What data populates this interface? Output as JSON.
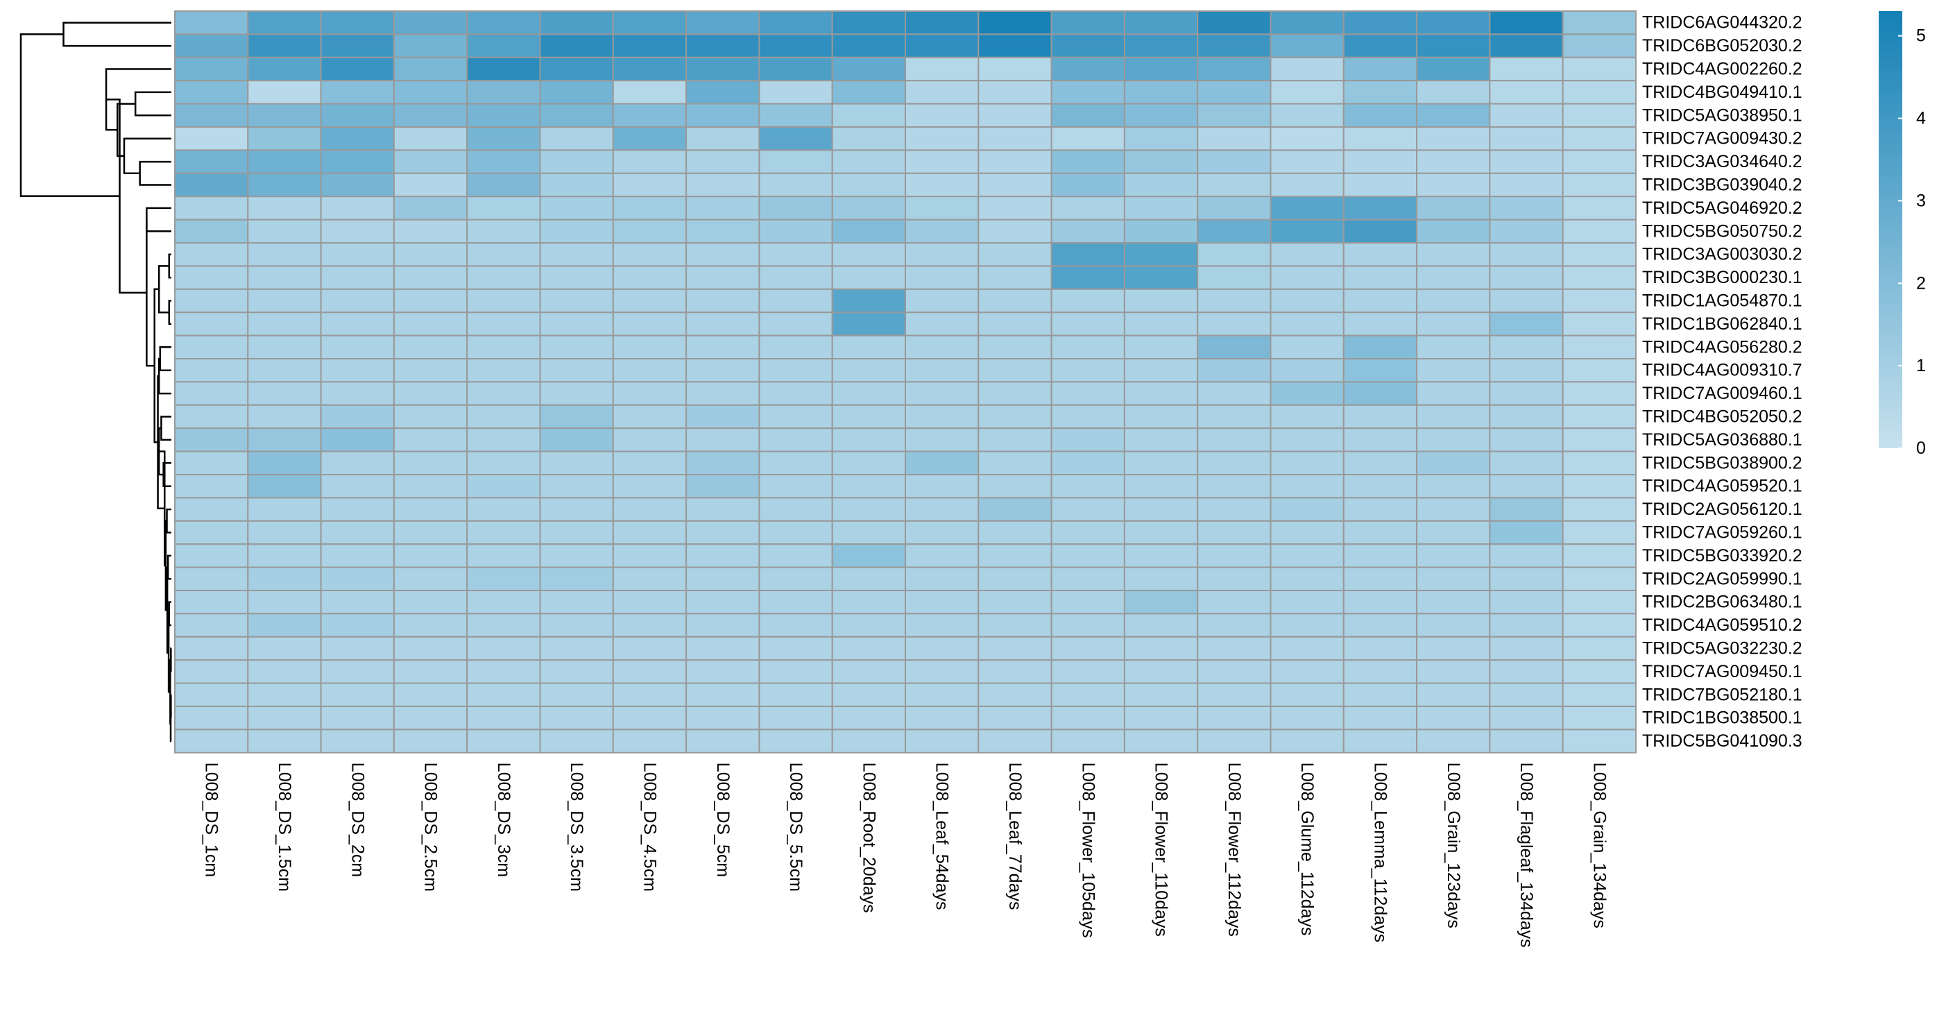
{
  "chart_data": {
    "type": "heatmap",
    "title": "",
    "xlabel": "",
    "ylabel": "",
    "columns": [
      "L008_DS_1cm",
      "L008_DS_1.5cm",
      "L008_DS_2cm",
      "L008_DS_2.5cm",
      "L008_DS_3cm",
      "L008_DS_3.5cm",
      "L008_DS_4.5cm",
      "L008_DS_5cm",
      "L008_DS_5.5cm",
      "L008_Root_20days",
      "L008_Leaf_54days",
      "L008_Leaf_77days",
      "L008_Flower_105days",
      "L008_Flower_110days",
      "L008_Flower_112days",
      "L008_Glume_112days",
      "L008_Lemma_112days",
      "L008_Grain_123days",
      "L008_Flagleaf_134days",
      "L008_Grain_134days"
    ],
    "rows": [
      "TRIDC6AG044320.2",
      "TRIDC6BG052030.2",
      "TRIDC4AG002260.2",
      "TRIDC4BG049410.1",
      "TRIDC5AG038950.1",
      "TRIDC7AG009430.2",
      "TRIDC3AG034640.2",
      "TRIDC3BG039040.2",
      "TRIDC5AG046920.2",
      "TRIDC5BG050750.2",
      "TRIDC3AG003030.2",
      "TRIDC3BG000230.1",
      "TRIDC1AG054870.1",
      "TRIDC1BG062840.1",
      "TRIDC4AG056280.2",
      "TRIDC4AG009310.7",
      "TRIDC7AG009460.1",
      "TRIDC4BG052050.2",
      "TRIDC5AG036880.1",
      "TRIDC5BG038900.2",
      "TRIDC4AG059520.1",
      "TRIDC2AG056120.1",
      "TRIDC7AG059260.1",
      "TRIDC5BG033920.2",
      "TRIDC2AG059990.1",
      "TRIDC2BG063480.1",
      "TRIDC4AG059510.2",
      "TRIDC5AG032230.2",
      "TRIDC7AG009450.1",
      "TRIDC7BG052180.1",
      "TRIDC1BG038500.1",
      "TRIDC5BG041090.3"
    ],
    "values": [
      [
        2.0,
        3.5,
        3.5,
        3.0,
        3.2,
        3.6,
        3.5,
        3.2,
        3.7,
        4.4,
        4.6,
        5.2,
        3.6,
        3.6,
        4.8,
        3.6,
        3.9,
        3.9,
        5.1,
        1.5
      ],
      [
        3.0,
        4.2,
        4.1,
        2.5,
        3.5,
        4.6,
        4.5,
        4.5,
        4.5,
        4.5,
        4.5,
        5.0,
        4.1,
        4.0,
        4.1,
        2.7,
        4.2,
        4.3,
        4.6,
        1.5
      ],
      [
        2.5,
        3.3,
        4.2,
        2.3,
        4.6,
        4.0,
        3.8,
        3.6,
        3.6,
        3.0,
        0.5,
        0.5,
        3.0,
        3.2,
        2.9,
        0.6,
        2.0,
        3.4,
        0.5,
        0.5
      ],
      [
        2.0,
        0.4,
        1.9,
        2.0,
        2.2,
        2.5,
        0.5,
        2.8,
        0.6,
        2.0,
        0.6,
        0.6,
        1.8,
        1.9,
        1.8,
        0.5,
        1.5,
        0.8,
        0.5,
        0.5
      ],
      [
        2.2,
        2.2,
        2.5,
        2.2,
        2.4,
        2.3,
        2.0,
        2.0,
        1.6,
        0.9,
        0.6,
        0.6,
        2.3,
        2.0,
        1.5,
        0.8,
        2.0,
        2.1,
        0.6,
        0.5
      ],
      [
        0.4,
        1.6,
        2.8,
        0.7,
        2.4,
        0.8,
        2.6,
        0.8,
        3.2,
        0.8,
        0.6,
        0.6,
        0.5,
        1.1,
        0.6,
        0.4,
        0.5,
        0.6,
        0.6,
        0.5
      ],
      [
        2.5,
        2.6,
        2.6,
        1.2,
        2.0,
        1.0,
        0.8,
        0.8,
        0.9,
        0.8,
        0.6,
        0.6,
        1.8,
        1.4,
        1.2,
        0.6,
        0.6,
        0.6,
        0.6,
        0.5
      ],
      [
        3.0,
        2.6,
        2.4,
        0.6,
        2.2,
        1.0,
        0.7,
        0.7,
        0.8,
        0.8,
        0.6,
        0.6,
        1.8,
        1.0,
        0.8,
        0.7,
        0.6,
        0.6,
        0.6,
        0.5
      ],
      [
        0.8,
        0.7,
        0.7,
        1.4,
        0.9,
        1.0,
        1.1,
        1.0,
        1.4,
        1.3,
        0.9,
        0.6,
        0.8,
        1.0,
        1.4,
        3.3,
        3.3,
        1.4,
        1.2,
        0.5
      ],
      [
        1.5,
        0.8,
        0.7,
        0.7,
        0.8,
        1.0,
        1.1,
        1.1,
        1.2,
        2.0,
        1.2,
        0.7,
        1.3,
        1.6,
        2.8,
        3.4,
        3.8,
        1.6,
        1.2,
        0.5
      ],
      [
        0.8,
        0.8,
        0.8,
        0.8,
        0.8,
        0.8,
        0.8,
        0.8,
        0.8,
        0.8,
        0.8,
        0.8,
        3.5,
        3.4,
        0.9,
        0.8,
        0.8,
        0.8,
        0.8,
        0.5
      ],
      [
        0.8,
        0.8,
        0.8,
        0.8,
        0.8,
        0.8,
        0.8,
        0.8,
        0.8,
        0.8,
        0.8,
        0.8,
        3.5,
        3.4,
        0.9,
        0.8,
        0.8,
        0.8,
        0.8,
        0.5
      ],
      [
        0.8,
        0.8,
        0.8,
        0.8,
        0.8,
        0.8,
        0.8,
        0.8,
        0.8,
        3.3,
        0.8,
        0.8,
        0.8,
        0.8,
        0.8,
        0.8,
        0.8,
        0.8,
        0.8,
        0.5
      ],
      [
        0.8,
        0.8,
        0.8,
        0.8,
        0.8,
        0.8,
        0.8,
        0.8,
        0.8,
        3.3,
        0.8,
        0.8,
        0.8,
        0.8,
        0.8,
        0.8,
        0.8,
        0.8,
        1.7,
        0.5
      ],
      [
        0.8,
        0.8,
        0.8,
        0.8,
        0.8,
        0.8,
        0.8,
        0.8,
        0.8,
        0.8,
        0.8,
        0.8,
        0.8,
        0.8,
        2.2,
        0.8,
        2.0,
        0.8,
        0.8,
        0.5
      ],
      [
        0.8,
        0.8,
        0.8,
        0.8,
        0.8,
        0.8,
        0.8,
        0.8,
        0.8,
        0.8,
        0.8,
        0.8,
        0.8,
        0.8,
        1.2,
        1.0,
        1.7,
        0.8,
        0.8,
        0.5
      ],
      [
        0.8,
        0.8,
        0.8,
        0.8,
        0.8,
        0.8,
        0.8,
        0.8,
        0.8,
        0.8,
        0.8,
        0.8,
        0.8,
        0.8,
        0.8,
        1.6,
        1.9,
        0.8,
        0.8,
        0.5
      ],
      [
        0.8,
        0.8,
        1.2,
        0.8,
        0.8,
        1.5,
        0.8,
        1.2,
        0.8,
        0.8,
        0.8,
        0.8,
        0.8,
        0.8,
        0.8,
        0.8,
        0.8,
        0.8,
        0.8,
        0.5
      ],
      [
        1.4,
        1.5,
        1.8,
        0.8,
        0.8,
        1.6,
        0.8,
        0.8,
        0.8,
        0.8,
        0.8,
        0.8,
        1.0,
        0.8,
        0.8,
        0.8,
        0.8,
        0.8,
        0.8,
        0.5
      ],
      [
        0.8,
        1.8,
        0.8,
        0.8,
        0.8,
        0.8,
        0.8,
        1.3,
        0.8,
        0.8,
        1.6,
        0.8,
        1.0,
        0.8,
        0.8,
        0.8,
        0.8,
        1.2,
        0.8,
        0.5
      ],
      [
        0.8,
        1.9,
        0.8,
        0.8,
        1.0,
        0.8,
        0.8,
        1.4,
        0.8,
        0.8,
        0.8,
        0.8,
        0.8,
        0.8,
        0.8,
        0.8,
        0.8,
        0.8,
        0.8,
        0.5
      ],
      [
        0.8,
        0.8,
        0.8,
        0.8,
        0.8,
        0.8,
        0.8,
        0.8,
        0.8,
        0.8,
        0.8,
        1.4,
        0.8,
        0.8,
        0.8,
        1.0,
        0.8,
        0.8,
        1.5,
        0.5
      ],
      [
        0.8,
        0.8,
        0.8,
        0.8,
        0.8,
        0.8,
        0.8,
        0.8,
        0.8,
        0.8,
        0.8,
        0.8,
        0.8,
        0.8,
        0.8,
        0.8,
        0.8,
        0.8,
        1.6,
        0.5
      ],
      [
        0.8,
        0.8,
        0.8,
        0.8,
        0.8,
        0.8,
        0.8,
        0.8,
        0.8,
        1.7,
        0.8,
        0.8,
        0.8,
        0.8,
        0.8,
        0.8,
        0.8,
        0.8,
        0.8,
        0.5
      ],
      [
        0.8,
        1.0,
        1.0,
        0.8,
        1.1,
        1.1,
        0.8,
        0.8,
        0.8,
        0.8,
        0.8,
        0.8,
        0.8,
        0.8,
        0.8,
        0.8,
        0.8,
        0.8,
        0.8,
        0.5
      ],
      [
        0.8,
        0.8,
        0.8,
        0.8,
        0.8,
        0.8,
        0.8,
        0.8,
        0.8,
        0.8,
        0.8,
        0.8,
        0.8,
        1.5,
        0.8,
        0.8,
        0.8,
        0.8,
        0.8,
        0.5
      ],
      [
        0.8,
        1.2,
        1.0,
        0.8,
        0.8,
        0.8,
        0.8,
        0.8,
        0.8,
        0.8,
        0.8,
        0.8,
        0.8,
        0.8,
        0.8,
        0.8,
        0.8,
        0.8,
        0.8,
        0.5
      ],
      [
        0.7,
        0.7,
        0.7,
        0.7,
        0.7,
        0.7,
        0.7,
        0.7,
        0.7,
        0.7,
        0.7,
        0.7,
        0.7,
        0.7,
        0.7,
        0.7,
        0.7,
        0.7,
        0.7,
        0.5
      ],
      [
        0.7,
        0.7,
        0.7,
        0.7,
        0.7,
        0.7,
        0.7,
        0.7,
        0.7,
        0.7,
        0.7,
        0.7,
        0.7,
        0.7,
        0.7,
        0.7,
        0.7,
        0.7,
        0.7,
        0.5
      ],
      [
        0.7,
        0.7,
        0.7,
        0.7,
        0.7,
        0.7,
        0.7,
        0.7,
        0.7,
        0.7,
        0.7,
        0.7,
        0.7,
        0.7,
        0.7,
        0.7,
        0.7,
        0.7,
        0.7,
        0.5
      ],
      [
        0.7,
        0.7,
        0.7,
        0.7,
        0.7,
        0.7,
        0.7,
        0.7,
        0.7,
        0.7,
        0.7,
        0.7,
        0.7,
        0.7,
        0.7,
        0.7,
        0.7,
        0.7,
        0.7,
        0.5
      ],
      [
        0.7,
        0.7,
        0.7,
        0.7,
        0.7,
        0.7,
        0.7,
        0.7,
        0.7,
        0.7,
        0.7,
        0.7,
        0.7,
        0.7,
        0.7,
        0.7,
        0.7,
        0.7,
        0.7,
        0.5
      ]
    ],
    "value_range": [
      0,
      5.3
    ],
    "colormap": {
      "low": "#c6e1ee",
      "high": "#1580b5",
      "border": "#999999"
    },
    "legend": {
      "position": "right",
      "ticks": [
        0,
        1,
        2,
        3,
        4,
        5
      ]
    },
    "row_dendrogram": {
      "side": "left",
      "merges": [
        [
          -1,
          -2,
          4.8
        ],
        [
          -4,
          -5,
          1.6
        ],
        [
          -7,
          -8,
          1.4
        ],
        [
          -6,
          3,
          2.1
        ],
        [
          2,
          4,
          2.4
        ],
        [
          -3,
          5,
          2.9
        ],
        [
          -9,
          -10,
          1.1
        ],
        [
          -11,
          -12,
          0.1
        ],
        [
          -13,
          -14,
          0.1
        ],
        [
          8,
          9,
          0.55
        ],
        [
          -15,
          -16,
          0.5
        ],
        [
          -18,
          -19,
          0.45
        ],
        [
          -20,
          -21,
          0.35
        ],
        [
          12,
          13,
          0.55
        ],
        [
          -22,
          -23,
          0.2
        ],
        [
          -24,
          -25,
          0.15
        ],
        [
          -26,
          -27,
          0.1
        ],
        [
          -28,
          -29,
          0.02
        ],
        [
          -30,
          -31,
          0.02
        ],
        [
          -32,
          19,
          0.03
        ],
        [
          18,
          20,
          0.05
        ],
        [
          17,
          21,
          0.12
        ],
        [
          16,
          22,
          0.18
        ],
        [
          15,
          23,
          0.25
        ],
        [
          14,
          24,
          0.3
        ],
        [
          11,
          -17,
          0.55
        ],
        [
          25,
          26,
          0.6
        ],
        [
          10,
          27,
          0.75
        ],
        [
          7,
          28,
          1.1
        ],
        [
          6,
          29,
          2.3
        ],
        [
          1,
          30,
          6.7
        ]
      ]
    }
  }
}
